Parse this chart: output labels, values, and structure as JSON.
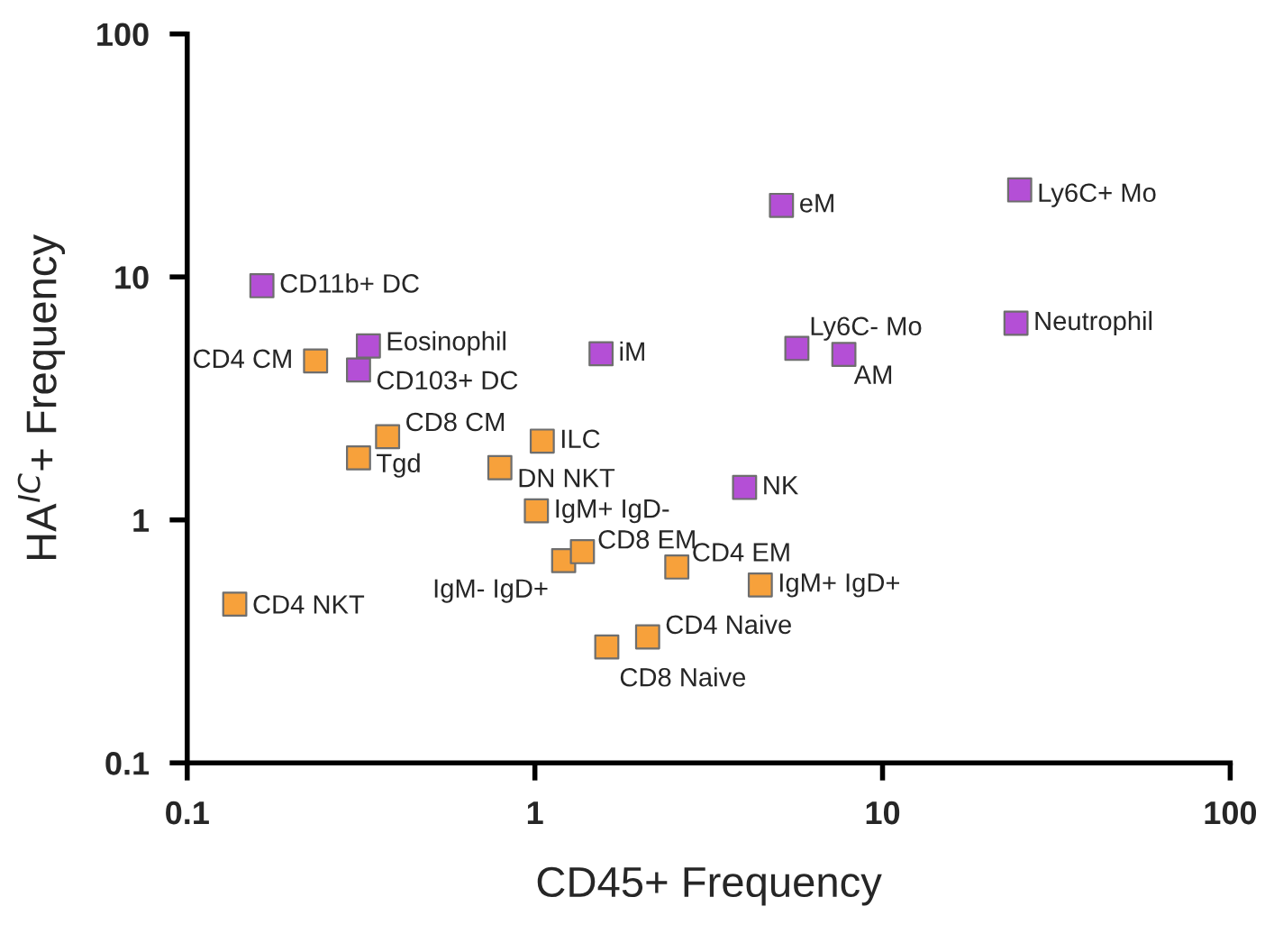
{
  "chart_data": {
    "type": "scatter",
    "xlabel": "CD45+ Frequency",
    "ylabel": "HA$^{IC}$+ Frequency",
    "log": "xy",
    "xlim": [
      0.1,
      100
    ],
    "ylim": [
      0.1,
      100
    ],
    "xticks": [
      0.1,
      1,
      10,
      100
    ],
    "yticks": [
      0.1,
      1,
      10,
      100
    ],
    "grid": false,
    "legend": false,
    "marker": "square",
    "series": [
      {
        "color": "#b44fd6",
        "x": [
          0.164,
          0.332,
          0.311,
          1.55,
          5.67,
          7.74,
          5.12,
          24.8,
          24.2,
          4.01
        ],
        "values": [
          9.2,
          5.2,
          4.14,
          4.83,
          5.08,
          4.8,
          19.7,
          22.8,
          6.45,
          1.36
        ]
      },
      {
        "color": "#f7a13b",
        "x": [
          0.234,
          0.377,
          0.311,
          1.05,
          0.793,
          1.01,
          1.21,
          1.37,
          2.56,
          4.45,
          0.137,
          2.11,
          1.61
        ],
        "values": [
          4.51,
          2.2,
          1.8,
          2.11,
          1.64,
          1.09,
          0.68,
          0.74,
          0.64,
          0.54,
          0.45,
          0.33,
          0.3
        ]
      }
    ],
    "annotations": [
      {
        "text": "CD11b+ DC",
        "x": 0.164,
        "y": 9.2
      },
      {
        "text": "Eosinophil",
        "x": 0.332,
        "y": 5.2
      },
      {
        "text": "CD103+ DC",
        "x": 0.311,
        "y": 4.14
      },
      {
        "text": "iM",
        "x": 1.55,
        "y": 4.83
      },
      {
        "text": "Ly6C- Mo",
        "x": 5.67,
        "y": 5.08
      },
      {
        "text": "AM",
        "x": 7.74,
        "y": 4.8
      },
      {
        "text": "eM",
        "x": 5.12,
        "y": 19.7
      },
      {
        "text": "Ly6C+ Mo",
        "x": 24.8,
        "y": 22.8
      },
      {
        "text": "Neutrophil",
        "x": 24.2,
        "y": 6.45
      },
      {
        "text": "NK",
        "x": 4.01,
        "y": 1.36
      },
      {
        "text": "CD4 CM",
        "x": 0.234,
        "y": 4.51
      },
      {
        "text": "CD8 CM",
        "x": 0.377,
        "y": 2.2
      },
      {
        "text": "Tgd",
        "x": 0.311,
        "y": 1.8
      },
      {
        "text": "ILC",
        "x": 1.05,
        "y": 2.11
      },
      {
        "text": "DN NKT",
        "x": 0.793,
        "y": 1.64
      },
      {
        "text": "IgM+ IgD-",
        "x": 1.01,
        "y": 1.09
      },
      {
        "text": "IgM- IgD+",
        "x": 1.21,
        "y": 0.68
      },
      {
        "text": "CD8 EM",
        "x": 1.37,
        "y": 0.74
      },
      {
        "text": "CD4 EM",
        "x": 2.56,
        "y": 0.64
      },
      {
        "text": "IgM+ IgD+",
        "x": 4.45,
        "y": 0.54
      },
      {
        "text": "CD4 NKT",
        "x": 0.137,
        "y": 0.45
      },
      {
        "text": "CD4 Naive",
        "x": 2.11,
        "y": 0.33
      },
      {
        "text": "CD8 Naive",
        "x": 1.61,
        "y": 0.3
      }
    ]
  }
}
